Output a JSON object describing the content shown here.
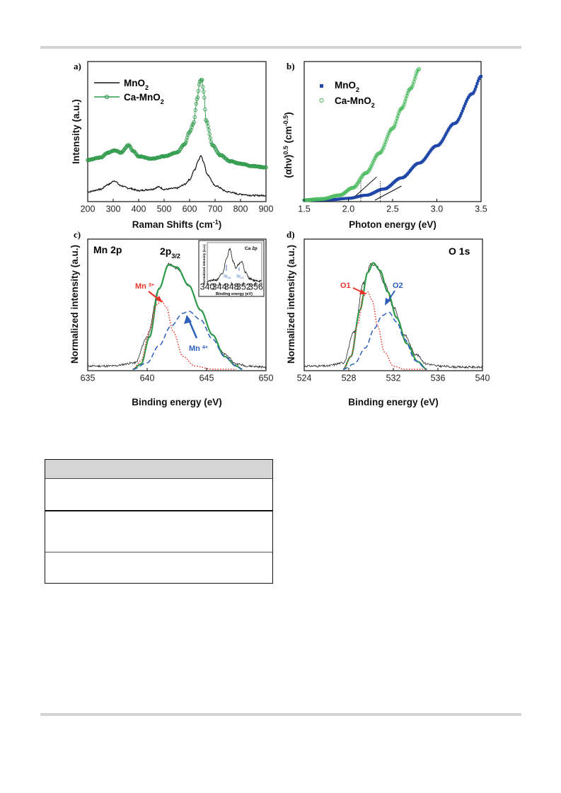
{
  "chart_data": [
    {
      "panel_label": "a)",
      "type": "line",
      "xlabel": "Raman Shifts (cm-1)",
      "ylabel": "Intensity (a.u.)",
      "xlim": [
        200,
        900
      ],
      "xticks": [
        200,
        300,
        400,
        500,
        600,
        700,
        800,
        900
      ],
      "legend_position": "top-left",
      "series": [
        {
          "name": "MnO2",
          "color": "#111111",
          "marker": "none",
          "x": [
            200,
            250,
            280,
            305,
            330,
            360,
            400,
            450,
            480,
            500,
            550,
            580,
            600,
            620,
            635,
            645,
            655,
            670,
            700,
            750,
            800,
            850,
            900
          ],
          "y": [
            0.08,
            0.1,
            0.14,
            0.17,
            0.13,
            0.11,
            0.09,
            0.1,
            0.12,
            0.1,
            0.11,
            0.14,
            0.18,
            0.26,
            0.34,
            0.38,
            0.32,
            0.22,
            0.13,
            0.08,
            0.06,
            0.05,
            0.05
          ]
        },
        {
          "name": "Ca-MnO2",
          "color": "#2e9a4a",
          "marker": "open-circle",
          "x": [
            200,
            250,
            280,
            305,
            330,
            360,
            380,
            400,
            450,
            500,
            550,
            580,
            600,
            615,
            630,
            640,
            648,
            655,
            665,
            690,
            720,
            760,
            800,
            850,
            900
          ],
          "y": [
            0.34,
            0.36,
            0.4,
            0.42,
            0.4,
            0.46,
            0.41,
            0.37,
            0.35,
            0.37,
            0.4,
            0.47,
            0.57,
            0.64,
            0.84,
            0.98,
            1.0,
            0.9,
            0.66,
            0.46,
            0.38,
            0.33,
            0.31,
            0.29,
            0.28
          ]
        }
      ]
    },
    {
      "panel_label": "b)",
      "type": "line",
      "xlabel": "Photon energy (eV)",
      "ylabel": "(αhν)0.5 (cm-0.5)",
      "xlim": [
        1.5,
        3.5
      ],
      "xticks": [
        "1.5",
        "2.0",
        "2.5",
        "3.0",
        "3.5"
      ],
      "legend_position": "top-left",
      "band_gap_markers_eV": [
        2.14,
        2.36
      ],
      "series": [
        {
          "name": "MnO2",
          "color": "#1f47a8",
          "marker": "filled-square",
          "x": [
            1.5,
            1.8,
            2.0,
            2.2,
            2.4,
            2.6,
            2.8,
            3.0,
            3.2,
            3.4,
            3.5
          ],
          "y": [
            0.0,
            0.004,
            0.015,
            0.04,
            0.09,
            0.18,
            0.3,
            0.44,
            0.62,
            0.86,
            1.0
          ]
        },
        {
          "name": "Ca-MnO2",
          "color": "#4cbb60",
          "marker": "open-circle",
          "x": [
            1.5,
            1.7,
            1.9,
            2.05,
            2.2,
            2.35,
            2.5,
            2.6,
            2.7,
            2.8
          ],
          "y": [
            0.0,
            0.01,
            0.04,
            0.1,
            0.22,
            0.38,
            0.58,
            0.74,
            0.9,
            1.06
          ]
        }
      ]
    },
    {
      "panel_label": "c)",
      "type": "line",
      "title": "Mn 2p",
      "peak_label": "2p3/2",
      "xlabel": "Binding energy (eV)",
      "ylabel": "Normalized intensity (a.u.)",
      "xlim": [
        635,
        650
      ],
      "xticks": [
        635,
        640,
        645,
        650
      ],
      "annotations": [
        "Mn 3+",
        "Mn 4+"
      ],
      "series": [
        {
          "name": "",
          "color": "#222222",
          "marker": "none",
          "x": [
            635,
            637,
            639,
            640,
            641,
            641.8,
            642.5,
            643.5,
            644.5,
            645.5,
            646.5,
            647.5,
            648.5,
            650
          ],
          "y": [
            0.03,
            0.03,
            0.06,
            0.3,
            0.75,
            0.98,
            0.94,
            0.78,
            0.55,
            0.32,
            0.14,
            0.05,
            0.03,
            0.02
          ]
        },
        {
          "name": "",
          "color": "#2e9a4a",
          "marker": "none",
          "x": [
            638.8,
            639.5,
            640.2,
            641,
            641.8,
            642.5,
            643.5,
            644.5,
            645.5,
            646.5,
            647.5,
            648
          ],
          "y": [
            0.0,
            0.05,
            0.3,
            0.75,
            0.97,
            0.95,
            0.78,
            0.55,
            0.32,
            0.12,
            0.03,
            0.0
          ]
        },
        {
          "name": "",
          "color": "#e8342a",
          "marker": "none",
          "x": [
            638.8,
            639.5,
            640.2,
            640.8,
            641.2,
            641.6,
            642.2,
            643,
            644,
            645.5,
            647.5
          ],
          "y": [
            0.0,
            0.08,
            0.36,
            0.6,
            0.64,
            0.58,
            0.35,
            0.12,
            0.03,
            0.0,
            0.0
          ]
        },
        {
          "name": "",
          "color": "#2d5fbd",
          "marker": "none",
          "x": [
            638.8,
            640,
            641,
            642,
            643,
            643.5,
            644.5,
            645.5,
            646.5,
            647.5,
            648
          ],
          "y": [
            0.0,
            0.06,
            0.22,
            0.4,
            0.52,
            0.54,
            0.46,
            0.28,
            0.12,
            0.03,
            0.0
          ]
        }
      ],
      "inset": {
        "title": "Ca 2p",
        "xlabel": "Binding energy (eV)",
        "ylabel": "Normalized intensity (a.u.)",
        "xlim": [
          340,
          358
        ],
        "xticks": [
          340,
          344,
          348,
          352,
          356
        ],
        "peaks": [
          "2p3/2",
          "2p1/2"
        ],
        "series": [
          {
            "name": "",
            "color": "#111111",
            "x": [
              340,
              343,
              345,
              346.5,
              347.5,
              348.5,
              349.5,
              350.5,
              351.5,
              352.5,
              354,
              356,
              358
            ],
            "y": [
              0.05,
              0.08,
              0.25,
              0.7,
              0.95,
              0.6,
              0.4,
              0.52,
              0.58,
              0.3,
              0.12,
              0.06,
              0.05
            ]
          }
        ]
      }
    },
    {
      "panel_label": "d)",
      "type": "line",
      "title": "O 1s",
      "xlabel": "Binding energy (eV)",
      "ylabel": "Normalized intensity (a.u.)",
      "xlim": [
        524,
        540
      ],
      "xticks": [
        524,
        528,
        532,
        536,
        540
      ],
      "annotations": [
        "O1",
        "O2"
      ],
      "series": [
        {
          "name": "",
          "color": "#222222",
          "marker": "none",
          "x": [
            524,
            526,
            527.5,
            528.5,
            529.3,
            530,
            530.5,
            531.2,
            532,
            533,
            534,
            535,
            536,
            538,
            540
          ],
          "y": [
            0.03,
            0.03,
            0.06,
            0.35,
            0.8,
            0.98,
            0.96,
            0.8,
            0.58,
            0.32,
            0.14,
            0.05,
            0.03,
            0.02,
            0.02
          ]
        },
        {
          "name": "",
          "color": "#2e9a4a",
          "marker": "none",
          "x": [
            527.5,
            528.2,
            529,
            529.7,
            530.2,
            530.8,
            531.5,
            532.3,
            533.2,
            534.2,
            535
          ],
          "y": [
            0.0,
            0.12,
            0.55,
            0.9,
            0.99,
            0.92,
            0.72,
            0.48,
            0.24,
            0.07,
            0.0
          ]
        },
        {
          "name": "",
          "color": "#e8342a",
          "marker": "none",
          "x": [
            527.5,
            528.2,
            528.8,
            529.3,
            529.7,
            530.1,
            530.6,
            531.2,
            532,
            533,
            535
          ],
          "y": [
            0.0,
            0.12,
            0.42,
            0.68,
            0.72,
            0.64,
            0.4,
            0.16,
            0.03,
            0.0,
            0.0
          ]
        },
        {
          "name": "",
          "color": "#2d5fbd",
          "marker": "none",
          "x": [
            527.5,
            528.5,
            529.5,
            530.3,
            531,
            531.6,
            532.3,
            533,
            534,
            535
          ],
          "y": [
            0.0,
            0.05,
            0.2,
            0.38,
            0.5,
            0.53,
            0.44,
            0.28,
            0.08,
            0.0
          ]
        }
      ]
    }
  ]
}
